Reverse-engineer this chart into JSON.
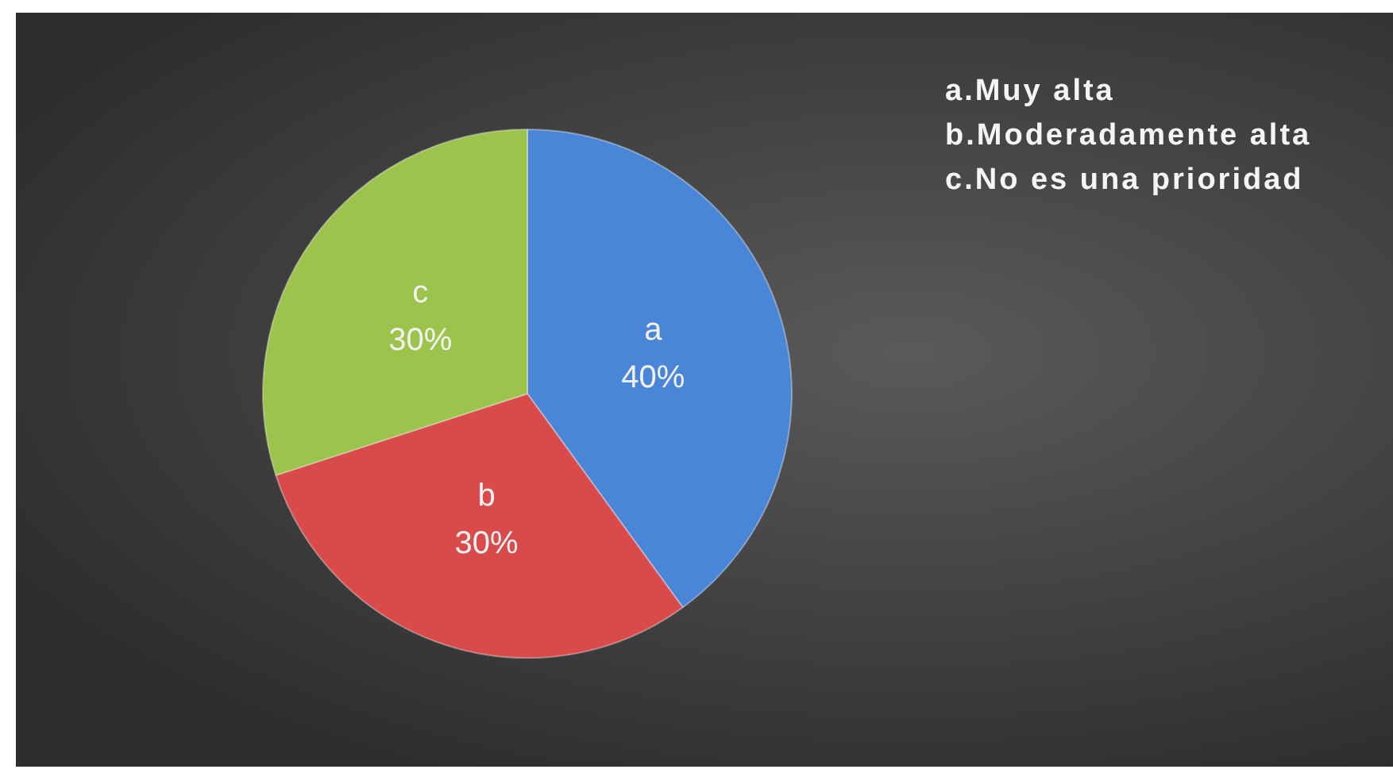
{
  "chart_data": {
    "type": "pie",
    "categories": [
      "a",
      "b",
      "c"
    ],
    "values": [
      40,
      30,
      30
    ],
    "colors": [
      "#4a86d8",
      "#d94a4a",
      "#9cc44c"
    ],
    "value_labels": [
      "40%",
      "30%",
      "30%"
    ],
    "annotations": [
      "a.Muy alta",
      "b.Moderadamente alta",
      "c.No es una prioridad"
    ],
    "legend": false
  }
}
